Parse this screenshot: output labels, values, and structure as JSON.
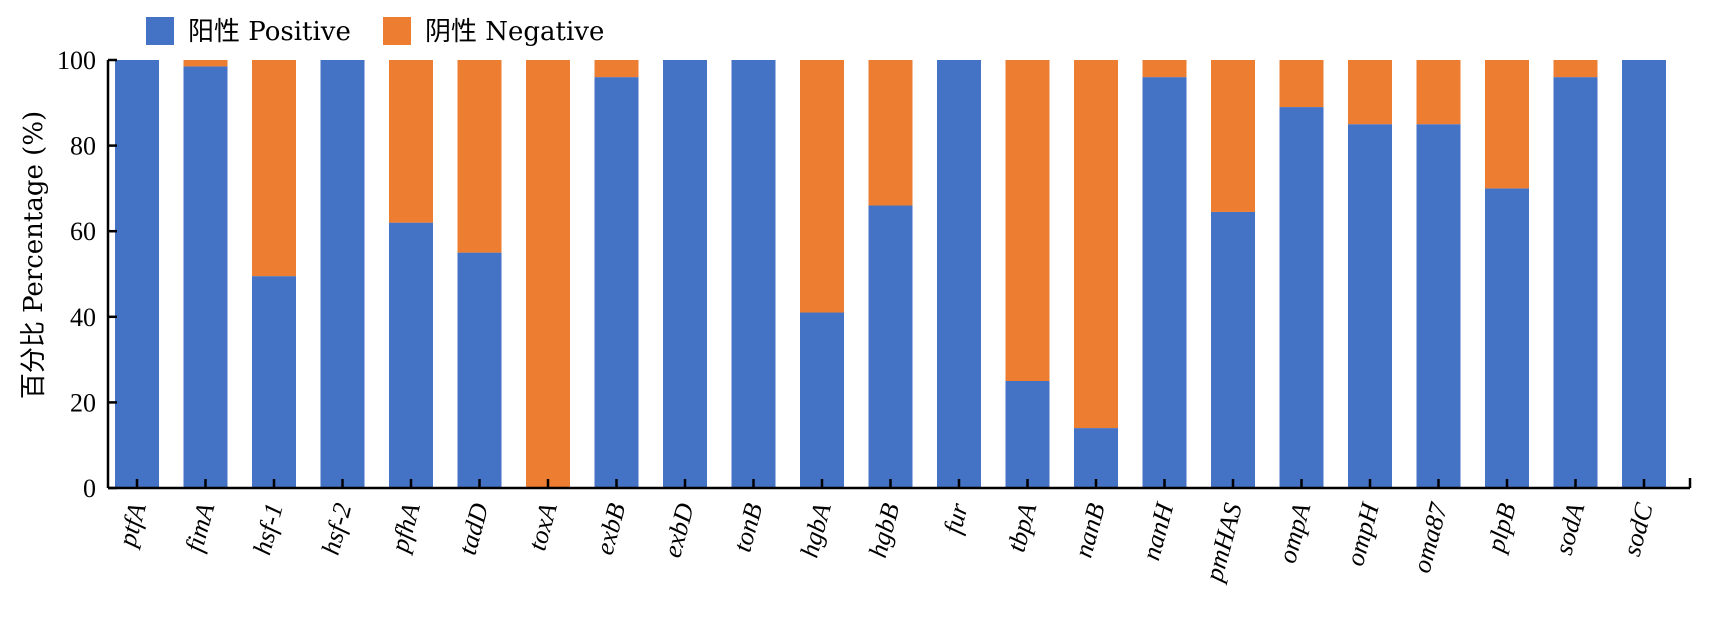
{
  "chart_data": {
    "type": "bar",
    "stacked": true,
    "ylabel": "百分比 Percentage (%)",
    "ylim": [
      0,
      100
    ],
    "yticks": [
      "0",
      "20",
      "40",
      "60",
      "80",
      "100"
    ],
    "categories": [
      "ptfA",
      "fimA",
      "hsf-1",
      "hsf-2",
      "pfhA",
      "tadD",
      "toxA",
      "exbB",
      "exbD",
      "tonB",
      "hgbA",
      "hgbB",
      "fur",
      "tbpA",
      "nanB",
      "nanH",
      "pmHAS",
      "ompA",
      "ompH",
      "oma87",
      "plpB",
      "sodA",
      "sodC"
    ],
    "series": [
      {
        "name": "阳性 Positive",
        "color": "#4472C4",
        "values": [
          100,
          98.5,
          49.5,
          100,
          62,
          55,
          0,
          96,
          100,
          100,
          41,
          66,
          100,
          25,
          14,
          96,
          64.5,
          89,
          85,
          85,
          70,
          96,
          100
        ]
      },
      {
        "name": "阴性 Negative",
        "color": "#ED7D31",
        "values": [
          0,
          1.5,
          50.5,
          0,
          38,
          45,
          100,
          4,
          0,
          0,
          59,
          34,
          0,
          75,
          86,
          4,
          35.5,
          11,
          15,
          15,
          30,
          4,
          0
        ]
      }
    ],
    "legend_position": "top-left",
    "grid": false
  }
}
